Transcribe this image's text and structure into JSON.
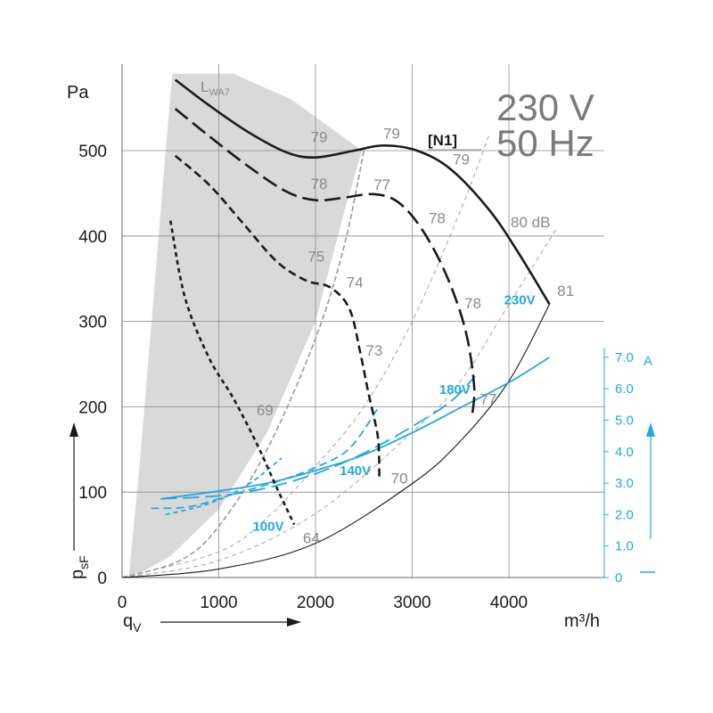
{
  "chart_data": {
    "type": "line",
    "title": "",
    "header": {
      "voltage": "230 V",
      "frequency": "50 Hz",
      "model": "[N1]"
    },
    "xlabel": "q",
    "xlabel_sub": "V",
    "xunit": "m³/h",
    "ylabel": "p",
    "ylabel_sub": "sF",
    "yunit": "Pa",
    "y2unit": "A",
    "xlim": [
      0,
      4800
    ],
    "ylim": [
      0,
      590
    ],
    "y2lim": [
      0,
      7.7
    ],
    "x_ticks": [
      "0",
      "1000",
      "2000",
      "3000",
      "4000"
    ],
    "y_ticks": [
      "0",
      "100",
      "200",
      "300",
      "400",
      "500"
    ],
    "y2_ticks": [
      "0",
      "1.0",
      "2.0",
      "3.0",
      "4.0",
      "5.0",
      "6.0",
      "7.0"
    ],
    "lwa_label": {
      "main": "L",
      "sub": "WA7"
    },
    "db_unit_label": "80 dB",
    "grid": true,
    "colors": {
      "pressure": "#1a1a1a",
      "current": "#23a9dd",
      "shade": "#d9d9d9",
      "grid": "#8c8c8c",
      "system_line": "#9a9a9a"
    },
    "shaded_region": {
      "note": "not-permitted operating zone",
      "boundary": [
        [
          70,
          2
        ],
        [
          180,
          130
        ],
        [
          320,
          320
        ],
        [
          450,
          500
        ],
        [
          520,
          590
        ],
        [
          1150,
          590
        ],
        [
          1750,
          560
        ],
        [
          2480,
          500
        ],
        [
          2300,
          430
        ],
        [
          2000,
          300
        ],
        [
          1500,
          170
        ],
        [
          1000,
          80
        ],
        [
          500,
          25
        ],
        [
          200,
          6
        ],
        [
          70,
          2
        ]
      ]
    },
    "pressure_series": [
      {
        "voltage": "230V",
        "style": "solid",
        "points": [
          [
            550,
            583
          ],
          [
            900,
            553
          ],
          [
            1300,
            522
          ],
          [
            1700,
            498
          ],
          [
            2000,
            492
          ],
          [
            2400,
            500
          ],
          [
            2700,
            506
          ],
          [
            3050,
            500
          ],
          [
            3400,
            478
          ],
          [
            3800,
            430
          ],
          [
            4100,
            380
          ],
          [
            4420,
            320
          ]
        ]
      },
      {
        "voltage": "180V",
        "style": "long-dash",
        "points": [
          [
            550,
            549
          ],
          [
            900,
            517
          ],
          [
            1300,
            482
          ],
          [
            1700,
            452
          ],
          [
            2000,
            442
          ],
          [
            2300,
            445
          ],
          [
            2600,
            449
          ],
          [
            2850,
            440
          ],
          [
            3100,
            408
          ],
          [
            3350,
            355
          ],
          [
            3550,
            290
          ],
          [
            3640,
            225
          ],
          [
            3620,
            190
          ]
        ]
      },
      {
        "voltage": "140V",
        "style": "medium-dash",
        "points": [
          [
            550,
            494
          ],
          [
            900,
            460
          ],
          [
            1250,
            415
          ],
          [
            1600,
            370
          ],
          [
            1900,
            348
          ],
          [
            2150,
            340
          ],
          [
            2350,
            315
          ],
          [
            2460,
            265
          ],
          [
            2540,
            220
          ],
          [
            2600,
            190
          ],
          [
            2650,
            160
          ],
          [
            2660,
            118
          ]
        ]
      },
      {
        "voltage": "100V",
        "style": "short-dash",
        "points": [
          [
            500,
            418
          ],
          [
            650,
            328
          ],
          [
            900,
            257
          ],
          [
            1150,
            210
          ],
          [
            1400,
            155
          ],
          [
            1600,
            105
          ],
          [
            1780,
            62
          ]
        ]
      }
    ],
    "current_series": [
      {
        "voltage": "230V",
        "style": "solid",
        "points": [
          [
            400,
            2.5
          ],
          [
            1000,
            2.75
          ],
          [
            1500,
            3.0
          ],
          [
            2000,
            3.4
          ],
          [
            2500,
            3.9
          ],
          [
            3000,
            4.6
          ],
          [
            3500,
            5.4
          ],
          [
            4000,
            6.2
          ],
          [
            4420,
            7.0
          ]
        ]
      },
      {
        "voltage": "180V",
        "style": "long-dash",
        "points": [
          [
            400,
            2.5
          ],
          [
            1000,
            2.6
          ],
          [
            1500,
            2.85
          ],
          [
            2000,
            3.3
          ],
          [
            2500,
            3.95
          ],
          [
            3000,
            4.8
          ],
          [
            3400,
            5.6
          ],
          [
            3650,
            6.4
          ]
        ]
      },
      {
        "voltage": "140V",
        "style": "medium-dash",
        "points": [
          [
            300,
            2.2
          ],
          [
            700,
            2.25
          ],
          [
            1100,
            2.6
          ],
          [
            1600,
            3.05
          ],
          [
            2000,
            3.5
          ],
          [
            2350,
            4.1
          ],
          [
            2650,
            5.4
          ]
        ]
      },
      {
        "voltage": "100V",
        "style": "short-dash",
        "points": [
          [
            450,
            2.0
          ],
          [
            900,
            2.35
          ],
          [
            1300,
            2.95
          ],
          [
            1650,
            3.8
          ]
        ]
      }
    ],
    "system_curves": [
      [
        [
          0,
          0
        ],
        [
          600,
          20
        ],
        [
          1000,
          60
        ],
        [
          1500,
          150
        ],
        [
          2000,
          280
        ],
        [
          2300,
          390
        ],
        [
          2500,
          500
        ]
      ],
      [
        [
          0,
          0
        ],
        [
          1000,
          30
        ],
        [
          1500,
          70
        ],
        [
          2000,
          130
        ],
        [
          2500,
          200
        ],
        [
          3000,
          300
        ],
        [
          3500,
          430
        ],
        [
          3800,
          520
        ]
      ],
      [
        [
          0,
          0
        ],
        [
          1000,
          20
        ],
        [
          2000,
          75
        ],
        [
          3000,
          170
        ],
        [
          3500,
          230
        ],
        [
          4000,
          320
        ],
        [
          4500,
          410
        ]
      ],
      [
        [
          0,
          0
        ],
        [
          1000,
          10
        ],
        [
          2000,
          40
        ],
        [
          3000,
          110
        ],
        [
          3500,
          160
        ],
        [
          4000,
          230
        ],
        [
          4420,
          320
        ]
      ]
    ],
    "annotations": [
      {
        "text": "79",
        "x": 1950,
        "y": 510
      },
      {
        "text": "79",
        "x": 2700,
        "y": 514
      },
      {
        "text": "79",
        "x": 3420,
        "y": 484
      },
      {
        "text": "78",
        "x": 1950,
        "y": 455
      },
      {
        "text": "77",
        "x": 2600,
        "y": 454
      },
      {
        "text": "78",
        "x": 3170,
        "y": 415
      },
      {
        "text": "75",
        "x": 1920,
        "y": 370
      },
      {
        "text": "74",
        "x": 2320,
        "y": 340
      },
      {
        "text": "78",
        "x": 3540,
        "y": 315
      },
      {
        "text": "81",
        "x": 4500,
        "y": 330
      },
      {
        "text": "73",
        "x": 2520,
        "y": 260
      },
      {
        "text": "77",
        "x": 3700,
        "y": 203
      },
      {
        "text": "69",
        "x": 1390,
        "y": 190
      },
      {
        "text": "70",
        "x": 2780,
        "y": 110
      },
      {
        "text": "64",
        "x": 1870,
        "y": 40
      }
    ],
    "voltage_labels": [
      {
        "text": "230V",
        "x": 3950,
        "y": 320
      },
      {
        "text": "180V",
        "x": 3280,
        "y": 215
      },
      {
        "text": "140V",
        "x": 2250,
        "y": 120
      },
      {
        "text": "100V",
        "x": 1350,
        "y": 55
      }
    ]
  }
}
